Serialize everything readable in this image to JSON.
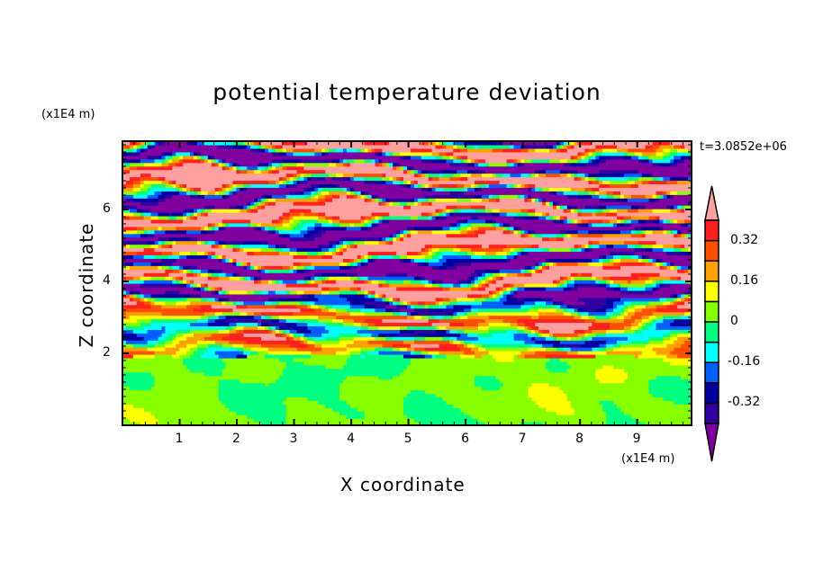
{
  "chart_data": {
    "type": "heatmap",
    "title": "potential temperature deviation",
    "xlabel": "X coordinate",
    "ylabel": "Z coordinate",
    "x_unit": "(x1E4 m)",
    "y_unit": "(x1E4 m)",
    "time_label": "t=3.0852e+06",
    "xlim": [
      0,
      9.95
    ],
    "ylim": [
      0,
      7.9
    ],
    "x_ticks": [
      "1",
      "2",
      "3",
      "4",
      "5",
      "6",
      "7",
      "8",
      "9"
    ],
    "x_tick_values": [
      1,
      2,
      3,
      4,
      5,
      6,
      7,
      8,
      9
    ],
    "y_ticks": [
      "2",
      "4",
      "6"
    ],
    "y_tick_values": [
      2,
      4,
      6
    ],
    "contour_levels": [
      -0.4,
      -0.32,
      -0.24,
      -0.16,
      -0.08,
      0,
      0.08,
      0.16,
      0.24,
      0.32,
      0.4
    ],
    "level_colors": [
      "#8000a0",
      "#3000a0",
      "#0000a0",
      "#0060ff",
      "#00ffff",
      "#00ff80",
      "#88ff00",
      "#ffff00",
      "#ffa000",
      "#ff5000",
      "#ff2020",
      "#ffa0a0"
    ],
    "colorbar_labels": [
      "0.32",
      "0.16",
      "0",
      "-0.16",
      "-0.32"
    ],
    "colorbar_label_values": [
      0.32,
      0.16,
      0,
      -0.16,
      -0.32
    ],
    "field_description_profile": [
      {
        "z_range": [
          0,
          1.9
        ],
        "typical_range": [
          -0.08,
          0.08
        ]
      },
      {
        "z_range": [
          1.9,
          3.6
        ],
        "typical_range": [
          -0.24,
          0.4
        ]
      },
      {
        "z_range": [
          3.6,
          7.9
        ],
        "typical_range": [
          -0.45,
          0.45
        ]
      }
    ]
  }
}
